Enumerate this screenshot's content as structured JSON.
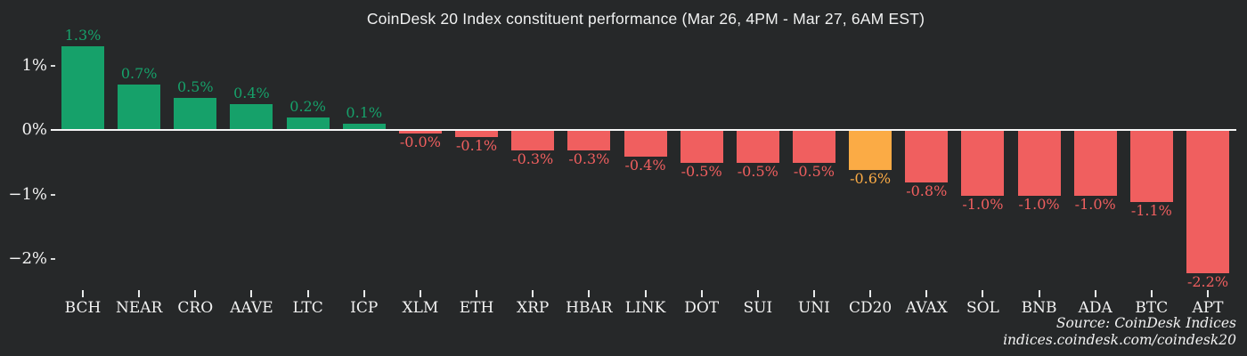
{
  "colors": {
    "background": "#262829",
    "positive": "#16a16a",
    "negative": "#f05f5f",
    "highlight": "#fbab45",
    "axis_text": "#f2f2f2",
    "zero_line": "#f5f5f5"
  },
  "source": {
    "line1": "Source: CoinDesk Indices",
    "line2": "indices.coindesk.com/coindesk20"
  },
  "chart_data": {
    "type": "bar",
    "title": "CoinDesk 20 Index constituent performance (Mar 26, 4PM - Mar 27, 6AM EST)",
    "xlabel": "",
    "ylabel": "",
    "ylim": [
      -2.5,
      1.5
    ],
    "grid": false,
    "legend": "none",
    "y_ticks": [
      {
        "label": "1%",
        "value": 1
      },
      {
        "label": "0%",
        "value": 0
      },
      {
        "label": "−1%",
        "value": -1
      },
      {
        "label": "−2%",
        "value": -2
      }
    ],
    "categories": [
      "BCH",
      "NEAR",
      "CRO",
      "AAVE",
      "LTC",
      "ICP",
      "XLM",
      "ETH",
      "XRP",
      "HBAR",
      "LINK",
      "DOT",
      "SUI",
      "UNI",
      "CD20",
      "AVAX",
      "SOL",
      "BNB",
      "ADA",
      "BTC",
      "APT"
    ],
    "values": [
      1.3,
      0.7,
      0.5,
      0.4,
      0.2,
      0.1,
      -0.0,
      -0.1,
      -0.3,
      -0.3,
      -0.4,
      -0.5,
      -0.5,
      -0.5,
      -0.6,
      -0.8,
      -1.0,
      -1.0,
      -1.0,
      -1.1,
      -2.2
    ],
    "bars": [
      {
        "symbol": "BCH",
        "label": "1.3%",
        "value": 1.3,
        "color": "positive"
      },
      {
        "symbol": "NEAR",
        "label": "0.7%",
        "value": 0.7,
        "color": "positive"
      },
      {
        "symbol": "CRO",
        "label": "0.5%",
        "value": 0.5,
        "color": "positive"
      },
      {
        "symbol": "AAVE",
        "label": "0.4%",
        "value": 0.4,
        "color": "positive"
      },
      {
        "symbol": "LTC",
        "label": "0.2%",
        "value": 0.2,
        "color": "positive"
      },
      {
        "symbol": "ICP",
        "label": "0.1%",
        "value": 0.1,
        "color": "positive"
      },
      {
        "symbol": "XLM",
        "label": "-0.0%",
        "value": -0.0,
        "color": "negative"
      },
      {
        "symbol": "ETH",
        "label": "-0.1%",
        "value": -0.1,
        "color": "negative"
      },
      {
        "symbol": "XRP",
        "label": "-0.3%",
        "value": -0.3,
        "color": "negative"
      },
      {
        "symbol": "HBAR",
        "label": "-0.3%",
        "value": -0.3,
        "color": "negative"
      },
      {
        "symbol": "LINK",
        "label": "-0.4%",
        "value": -0.4,
        "color": "negative"
      },
      {
        "symbol": "DOT",
        "label": "-0.5%",
        "value": -0.5,
        "color": "negative"
      },
      {
        "symbol": "SUI",
        "label": "-0.5%",
        "value": -0.5,
        "color": "negative"
      },
      {
        "symbol": "UNI",
        "label": "-0.5%",
        "value": -0.5,
        "color": "negative"
      },
      {
        "symbol": "CD20",
        "label": "-0.6%",
        "value": -0.6,
        "color": "highlight"
      },
      {
        "symbol": "AVAX",
        "label": "-0.8%",
        "value": -0.8,
        "color": "negative"
      },
      {
        "symbol": "SOL",
        "label": "-1.0%",
        "value": -1.0,
        "color": "negative"
      },
      {
        "symbol": "BNB",
        "label": "-1.0%",
        "value": -1.0,
        "color": "negative"
      },
      {
        "symbol": "ADA",
        "label": "-1.0%",
        "value": -1.0,
        "color": "negative"
      },
      {
        "symbol": "BTC",
        "label": "-1.1%",
        "value": -1.1,
        "color": "negative"
      },
      {
        "symbol": "APT",
        "label": "-2.2%",
        "value": -2.2,
        "color": "negative"
      }
    ]
  }
}
